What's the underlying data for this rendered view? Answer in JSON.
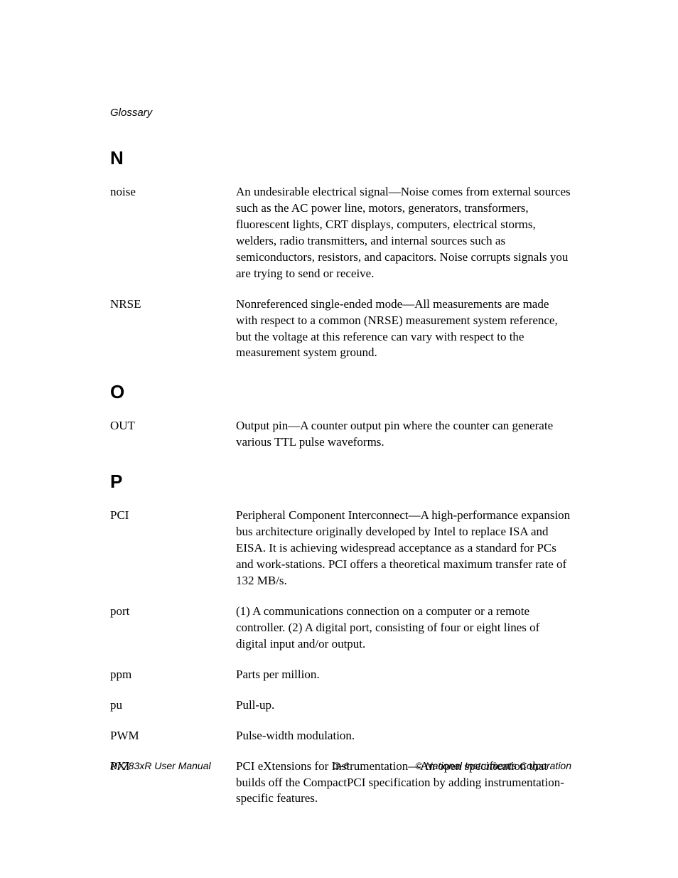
{
  "header": {
    "running_title": "Glossary"
  },
  "sections": [
    {
      "letter": "N",
      "entries": [
        {
          "term": "noise",
          "definition": "An undesirable electrical signal—Noise comes from external sources such as the AC power line, motors, generators, transformers, fluorescent lights, CRT displays, computers, electrical storms, welders, radio transmitters, and internal sources such as semiconductors, resistors, and capacitors. Noise corrupts signals you are trying to send or receive."
        },
        {
          "term": "NRSE",
          "definition": "Nonreferenced single-ended mode—All measurements are made with respect to a common (NRSE) measurement system reference, but the voltage at this reference can vary with respect to the measurement system ground."
        }
      ]
    },
    {
      "letter": "O",
      "entries": [
        {
          "term": "OUT",
          "definition": "Output pin—A counter output pin where the counter can generate various TTL pulse waveforms."
        }
      ]
    },
    {
      "letter": "P",
      "entries": [
        {
          "term": "PCI",
          "definition": "Peripheral Component Interconnect—A high-performance expansion bus architecture originally developed by Intel to replace ISA and EISA. It is achieving widespread acceptance as a standard for PCs and work-stations. PCI offers a theoretical maximum transfer rate of 132 MB/s."
        },
        {
          "term": "port",
          "definition": "(1) A communications connection on a computer or a remote controller. (2) A digital port, consisting of four or eight lines of digital input and/or output."
        },
        {
          "term": "ppm",
          "definition": "Parts per million."
        },
        {
          "term": "pu",
          "definition": "Pull-up."
        },
        {
          "term": "PWM",
          "definition": "Pulse-width modulation."
        },
        {
          "term": "PXI",
          "definition": "PCI eXtensions for Instrumentation—An open specification that builds off the CompactPCI specification by adding instrumentation-specific features."
        }
      ]
    }
  ],
  "footer": {
    "left": "NI 783xR User Manual",
    "center": "G-6",
    "right": "© National Instruments Corporation"
  }
}
